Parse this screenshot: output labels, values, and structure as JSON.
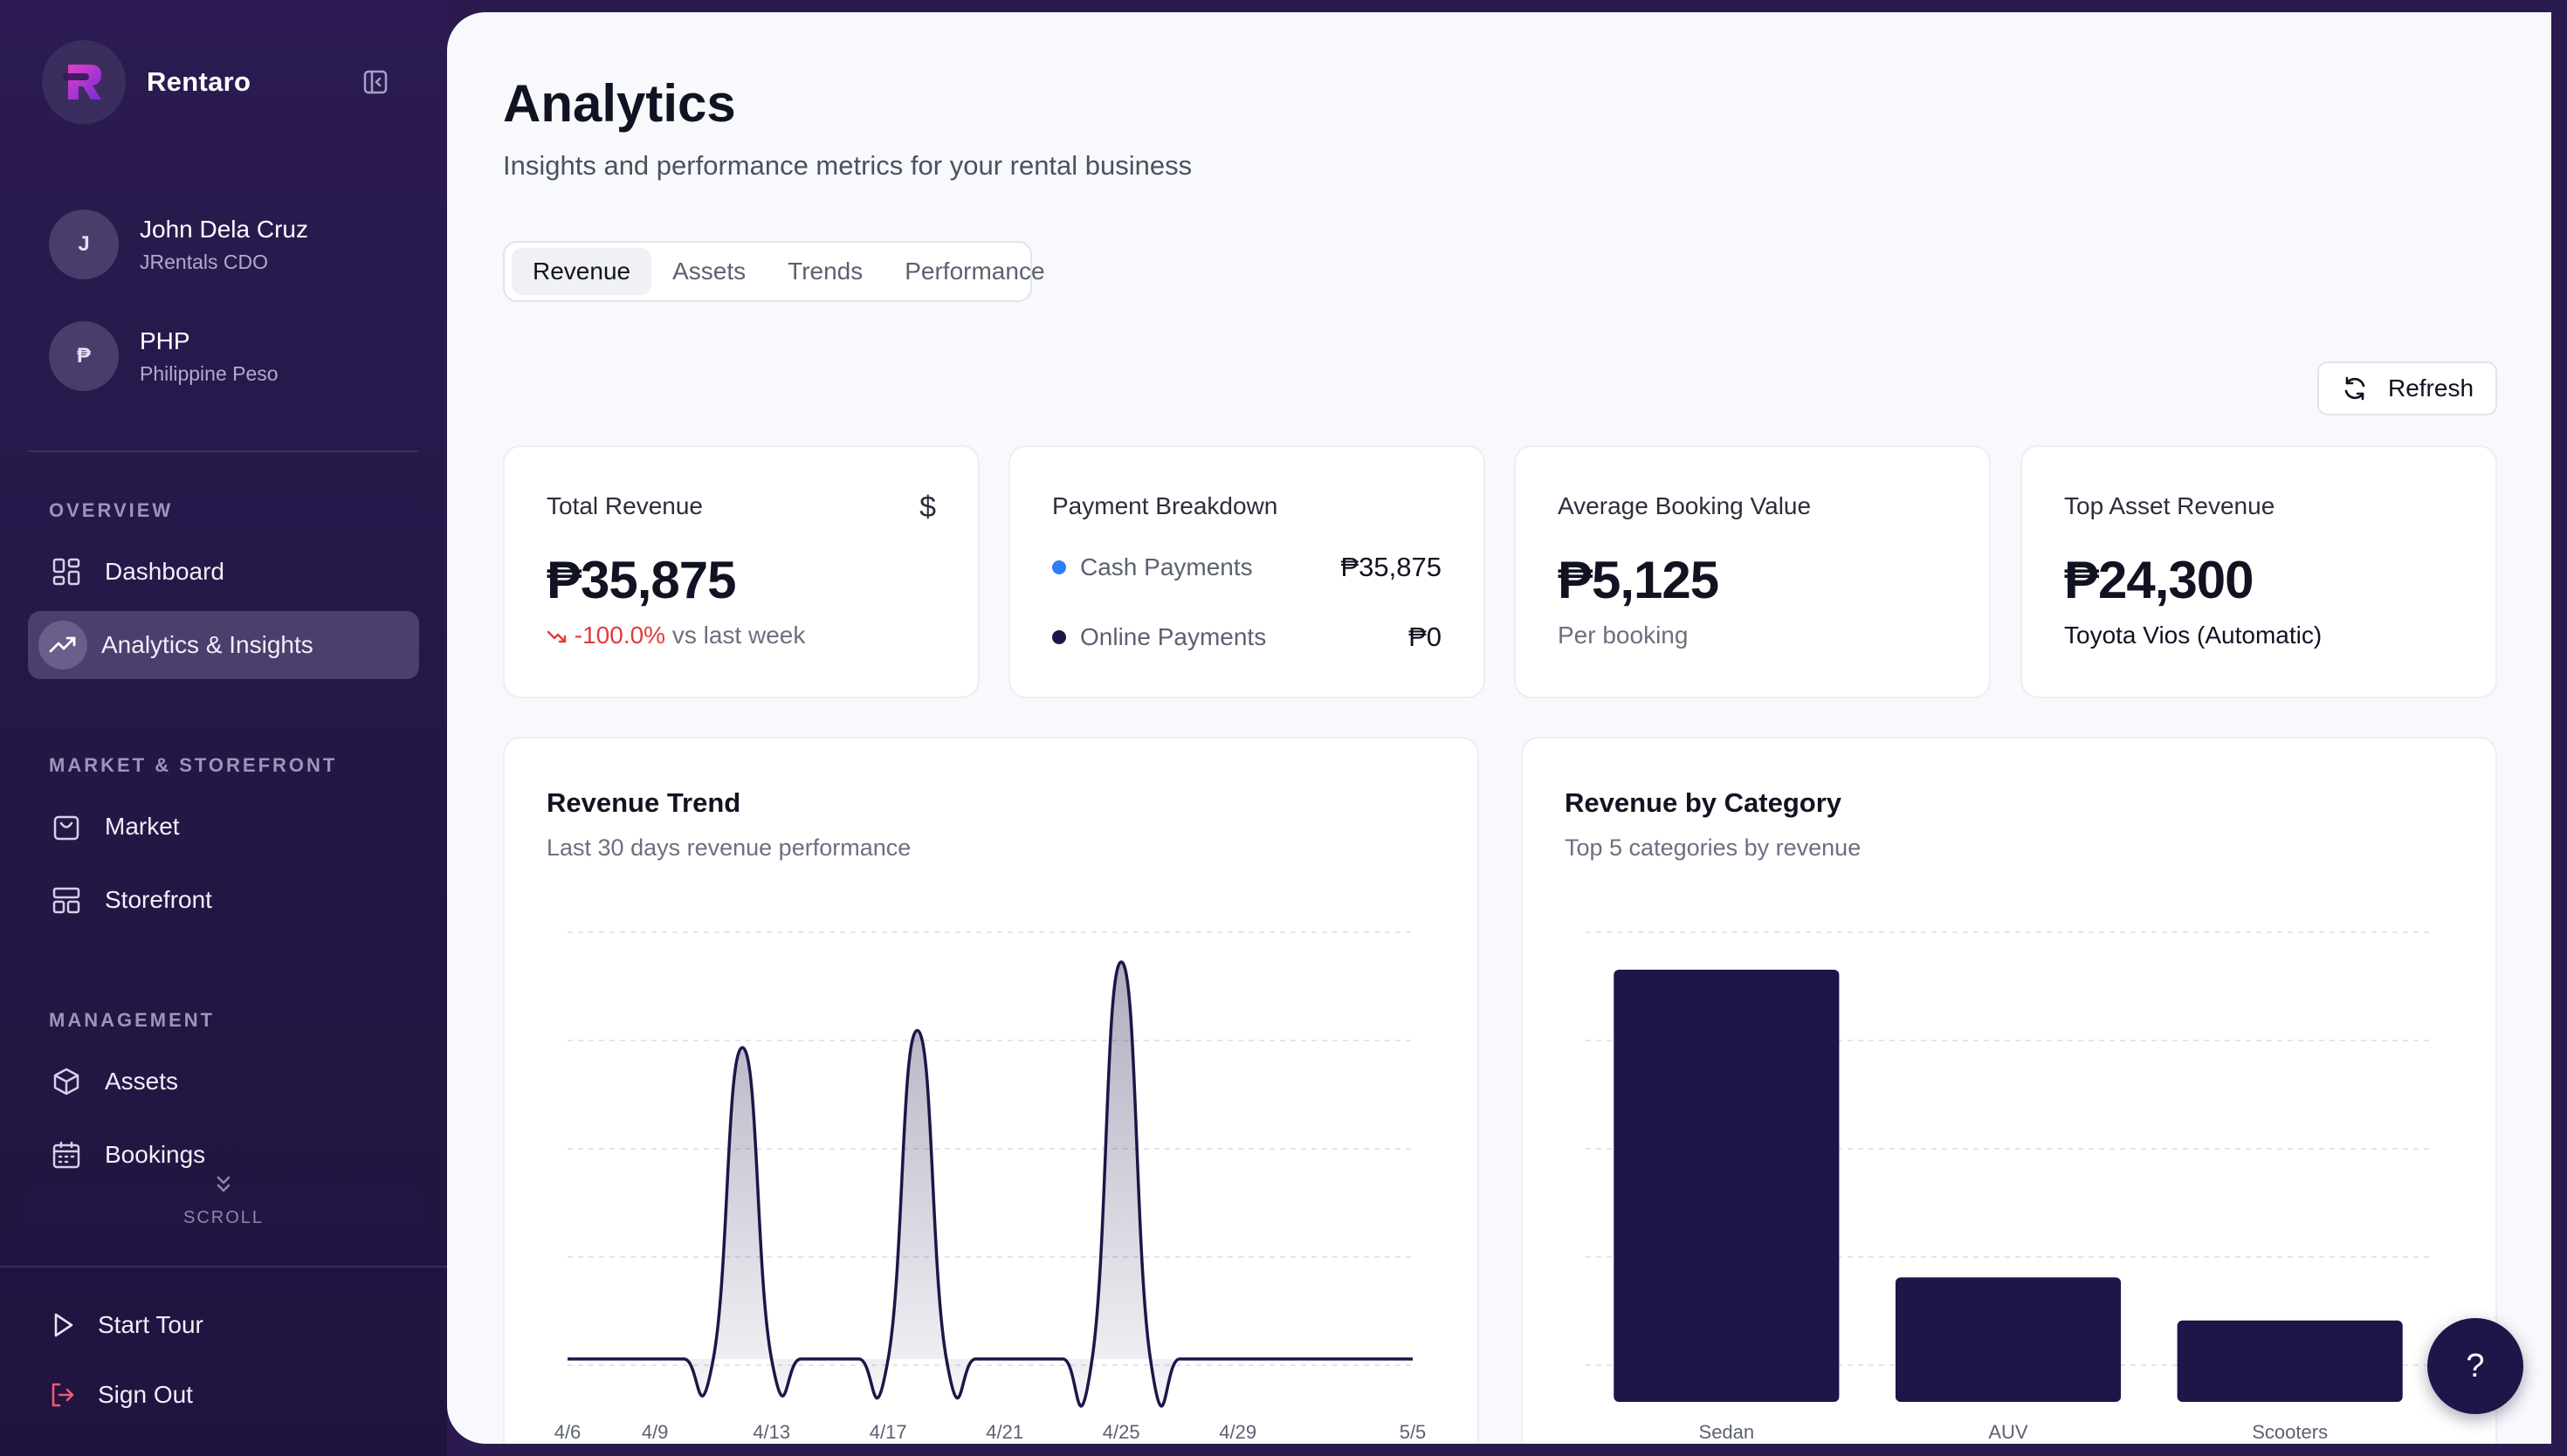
{
  "app": {
    "name": "Rentaro"
  },
  "user": {
    "initial": "J",
    "name": "John Dela Cruz",
    "role": "JRentals CDO"
  },
  "currency": {
    "symbol": "₱",
    "code": "PHP",
    "name": "Philippine Peso"
  },
  "nav": {
    "overview_label": "OVERVIEW",
    "market_label": "MARKET & STOREFRONT",
    "management_label": "MANAGEMENT",
    "items": {
      "dashboard": "Dashboard",
      "analytics": "Analytics & Insights",
      "market": "Market",
      "storefront": "Storefront",
      "assets": "Assets",
      "bookings": "Bookings"
    },
    "scroll_hint": "SCROLL",
    "start_tour": "Start Tour",
    "sign_out": "Sign Out"
  },
  "page": {
    "title": "Analytics",
    "subtitle": "Insights and performance metrics for your rental business",
    "tabs": [
      "Revenue",
      "Assets",
      "Trends",
      "Performance"
    ],
    "active_tab": "Revenue",
    "refresh_label": "Refresh"
  },
  "stats": {
    "total_revenue": {
      "title": "Total Revenue",
      "icon": "$",
      "value": "₱35,875",
      "change": "-100.0%",
      "change_suffix": "vs last week"
    },
    "payment_breakdown": {
      "title": "Payment Breakdown",
      "rows": [
        {
          "name": "Cash Payments",
          "amount": "₱35,875",
          "color": "#2f7cf6"
        },
        {
          "name": "Online Payments",
          "amount": "₱0",
          "color": "#1e1548"
        }
      ]
    },
    "avg_booking": {
      "title": "Average Booking Value",
      "value": "₱5,125",
      "note": "Per booking"
    },
    "top_asset": {
      "title": "Top Asset Revenue",
      "value": "₱24,300",
      "asset": "Toyota Vios (Automatic)"
    }
  },
  "colors": {
    "accent": "#1e1548",
    "negative": "#e23b3b",
    "cash": "#2f7cf6"
  },
  "help_label": "?",
  "chart_data": [
    {
      "type": "line",
      "title": "Revenue Trend",
      "subtitle": "Last 30 days revenue performance",
      "x": [
        "4/6",
        "4/7",
        "4/8",
        "4/9",
        "4/10",
        "4/11",
        "4/12",
        "4/13",
        "4/14",
        "4/15",
        "4/16",
        "4/17",
        "4/18",
        "4/19",
        "4/20",
        "4/21",
        "4/22",
        "4/23",
        "4/24",
        "4/25",
        "4/26",
        "4/27",
        "4/28",
        "4/29",
        "4/30",
        "5/1",
        "5/2",
        "5/3",
        "5/4",
        "5/5"
      ],
      "x_tick_labels": [
        "4/6",
        "4/9",
        "4/13",
        "4/17",
        "4/21",
        "4/25",
        "4/29",
        "5/5"
      ],
      "values": [
        0,
        0,
        0,
        0,
        0,
        0,
        10900,
        0,
        0,
        0,
        0,
        0,
        11500,
        0,
        0,
        0,
        0,
        0,
        0,
        13900,
        0,
        0,
        0,
        0,
        0,
        0,
        0,
        0,
        0,
        0
      ],
      "ylim": [
        -1500,
        15000
      ],
      "grid": true
    },
    {
      "type": "bar",
      "title": "Revenue by Category",
      "subtitle": "Top 5 categories by revenue",
      "categories": [
        "Sedan",
        "AUV",
        "Scooters"
      ],
      "values": [
        24300,
        7000,
        4575
      ],
      "ylim": [
        0,
        26500
      ],
      "grid": true
    }
  ]
}
